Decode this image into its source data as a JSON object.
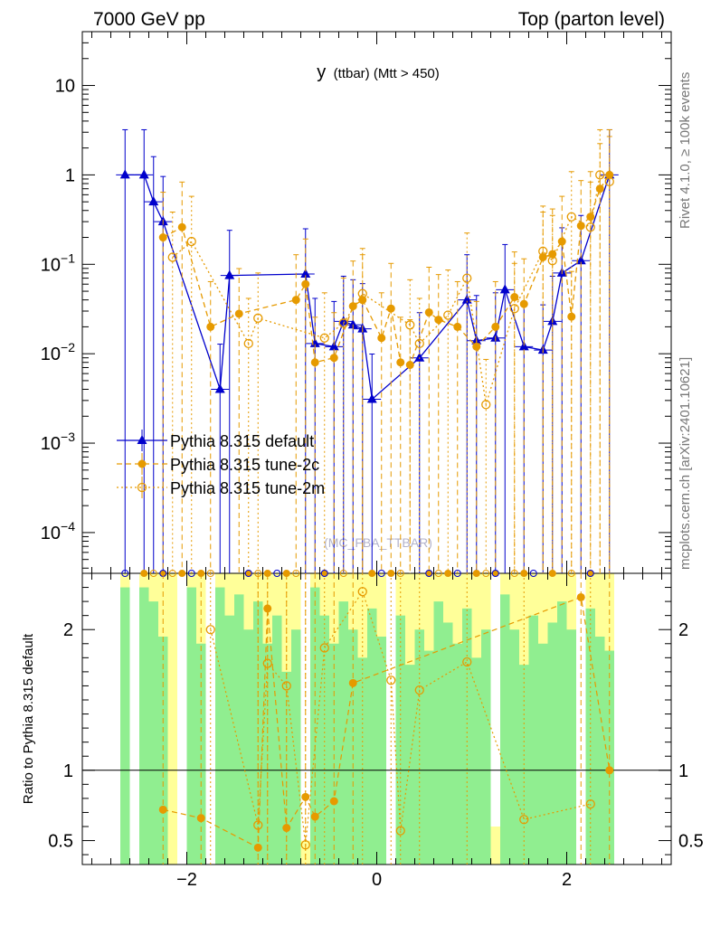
{
  "header": {
    "left": "7000 GeV pp",
    "right": "Top (parton level)"
  },
  "side_labels": {
    "rivet": "Rivet 4.1.0, ≥ 100k events",
    "mcplots": "mcplots.cern.ch [arXiv:2401.10621]"
  },
  "chart_data": {
    "type": "line",
    "title_main": "y",
    "title_sub": "(ttbar) (Mtt > 450)",
    "watermark": "(MC_FBA_TTBAR)",
    "xlabel": "",
    "ylabel_top": "",
    "ylabel_ratio": "Ratio to Pythia 8.315 default",
    "xlim": [
      -3.1,
      3.1
    ],
    "ylim_top": [
      3.5e-05,
      40
    ],
    "ylim_ratio": [
      0.33,
      2.4
    ],
    "yscale_top": "log",
    "x_ticks": [
      "−2",
      "0",
      "2"
    ],
    "x_tick_values": [
      -2,
      0,
      2
    ],
    "y_ticks_top": [
      {
        "v": 10,
        "base": "10",
        "exp": ""
      },
      {
        "v": 1,
        "base": "1",
        "exp": ""
      },
      {
        "v": 0.1,
        "base": "10",
        "exp": "−1"
      },
      {
        "v": 0.01,
        "base": "10",
        "exp": "−2"
      },
      {
        "v": 0.001,
        "base": "10",
        "exp": "−3"
      },
      {
        "v": 0.0001,
        "base": "10",
        "exp": "−4"
      }
    ],
    "y_ticks_ratio": [
      "0.5",
      "1",
      "2"
    ],
    "y_tick_values_ratio": [
      0.5,
      1,
      2
    ],
    "legend": [
      {
        "name": "Pythia 8.315 default",
        "color": "#0000cc",
        "marker": "triangle"
      },
      {
        "name": "Pythia 8.315 tune-2c",
        "color": "#e69a00",
        "marker": "filled-circle"
      },
      {
        "name": "Pythia 8.315 tune-2m",
        "color": "#e69a00",
        "marker": "open-circle"
      }
    ],
    "series": [
      {
        "name": "Pythia 8.315 default",
        "points": [
          [
            -2.65,
            1.0
          ],
          [
            -2.45,
            1.0
          ],
          [
            -2.35,
            0.5
          ],
          [
            -2.25,
            0.3
          ],
          [
            -1.65,
            0.004
          ],
          [
            -1.55,
            0.075
          ],
          [
            -0.75,
            0.078
          ],
          [
            -0.65,
            0.013
          ],
          [
            -0.45,
            0.012
          ],
          [
            -0.35,
            0.023
          ],
          [
            -0.25,
            0.021
          ],
          [
            -0.15,
            0.019
          ],
          [
            -0.05,
            0.0031
          ],
          [
            0.45,
            0.009
          ],
          [
            0.95,
            0.04
          ],
          [
            1.05,
            0.014
          ],
          [
            1.25,
            0.015
          ],
          [
            1.35,
            0.052
          ],
          [
            1.55,
            0.012
          ],
          [
            1.75,
            0.011
          ],
          [
            1.85,
            0.023
          ],
          [
            1.95,
            0.08
          ],
          [
            2.15,
            0.11
          ],
          [
            2.45,
            1.0
          ]
        ]
      },
      {
        "name": "Pythia 8.315 tune-2c",
        "points": [
          [
            -2.25,
            0.2
          ],
          [
            -2.05,
            0.26
          ],
          [
            -1.75,
            0.02
          ],
          [
            -1.45,
            0.028
          ],
          [
            -0.85,
            0.04
          ],
          [
            -0.75,
            0.06
          ],
          [
            -0.65,
            0.008
          ],
          [
            -0.45,
            0.009
          ],
          [
            -0.25,
            0.034
          ],
          [
            -0.15,
            0.04
          ],
          [
            0.05,
            0.015
          ],
          [
            0.15,
            0.032
          ],
          [
            0.25,
            0.008
          ],
          [
            0.35,
            0.0075
          ],
          [
            0.55,
            0.029
          ],
          [
            0.65,
            0.024
          ],
          [
            0.85,
            0.02
          ],
          [
            1.05,
            0.012
          ],
          [
            1.25,
            0.02
          ],
          [
            1.45,
            0.043
          ],
          [
            1.55,
            0.036
          ],
          [
            1.75,
            0.12
          ],
          [
            1.85,
            0.13
          ],
          [
            1.95,
            0.18
          ],
          [
            2.05,
            0.026
          ],
          [
            2.15,
            0.27
          ],
          [
            2.25,
            0.34
          ],
          [
            2.35,
            0.7
          ],
          [
            2.45,
            1.0
          ]
        ]
      },
      {
        "name": "Pythia 8.315 tune-2m",
        "points": [
          [
            -2.15,
            0.12
          ],
          [
            -1.95,
            0.18
          ],
          [
            -1.35,
            0.013
          ],
          [
            -1.25,
            0.025
          ],
          [
            -0.55,
            0.015
          ],
          [
            -0.35,
            0.022
          ],
          [
            -0.15,
            0.047
          ],
          [
            0.35,
            0.021
          ],
          [
            0.45,
            0.013
          ],
          [
            0.75,
            0.027
          ],
          [
            0.95,
            0.07
          ],
          [
            1.15,
            0.0027
          ],
          [
            1.45,
            0.032
          ],
          [
            1.75,
            0.14
          ],
          [
            1.85,
            0.11
          ],
          [
            2.05,
            0.34
          ],
          [
            2.25,
            0.26
          ],
          [
            2.35,
            1.0
          ],
          [
            2.45,
            0.84
          ]
        ]
      }
    ],
    "ratio_series": [
      {
        "name": "Pythia 8.315 tune-2c",
        "points": [
          [
            -2.25,
            0.72
          ],
          [
            -1.85,
            0.66
          ],
          [
            -1.25,
            0.45
          ],
          [
            -1.15,
            2.15
          ],
          [
            -0.95,
            0.59
          ],
          [
            -0.75,
            0.81
          ],
          [
            -0.65,
            0.67
          ],
          [
            -0.45,
            0.78
          ],
          [
            -0.25,
            1.62
          ],
          [
            2.15,
            2.23
          ],
          [
            2.45,
            1.0
          ]
        ]
      },
      {
        "name": "Pythia 8.315 tune-2m",
        "points": [
          [
            -1.75,
            2.0
          ],
          [
            -1.25,
            0.61
          ],
          [
            -1.15,
            1.76
          ],
          [
            -0.95,
            1.6
          ],
          [
            -0.75,
            0.47
          ],
          [
            -0.55,
            1.87
          ],
          [
            -0.15,
            2.27
          ],
          [
            0.15,
            1.64
          ],
          [
            0.25,
            0.57
          ],
          [
            0.45,
            1.57
          ],
          [
            0.95,
            1.77
          ],
          [
            1.55,
            0.65
          ],
          [
            2.25,
            0.76
          ]
        ]
      }
    ]
  }
}
